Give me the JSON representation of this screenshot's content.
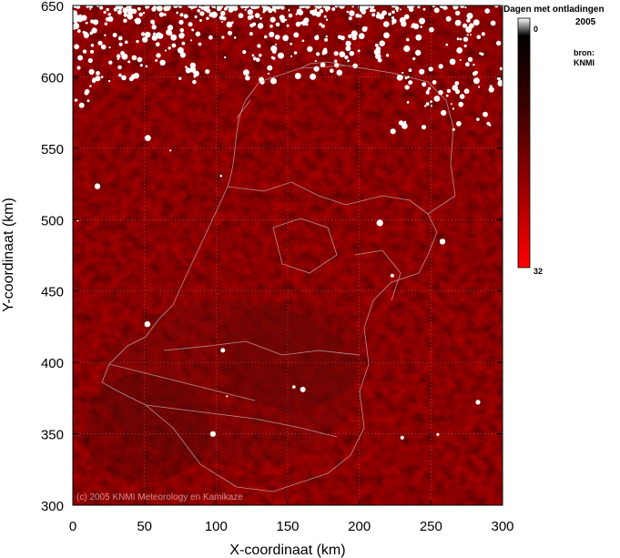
{
  "map": {
    "copyright": "(c) 2005 KNMI Meteorology en Kamikaze",
    "x_label": "X-coordinaat (km)",
    "y_label": "Y-coordinaat (km)",
    "x_ticks": [
      "0",
      "50",
      "100",
      "150",
      "200",
      "250",
      "300"
    ],
    "y_ticks": [
      "300",
      "350",
      "400",
      "450",
      "500",
      "550",
      "600",
      "650"
    ],
    "x_range": [
      0,
      300
    ],
    "y_range": [
      300,
      650
    ],
    "grid": true
  },
  "legend": {
    "title": "Dagen met ontladingen",
    "year": "2005",
    "source_label": "bron:",
    "source_name": "KNMI",
    "min_label": "0",
    "max_label": "32",
    "colors": [
      "#ffffff",
      "#000000",
      "#ff0000"
    ]
  }
}
